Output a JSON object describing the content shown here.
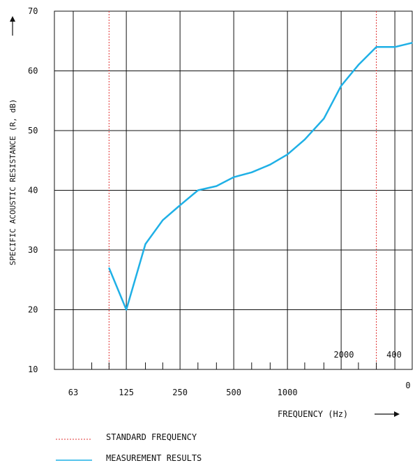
{
  "chart_data": {
    "type": "line",
    "xlabel": "FREQUENCY (Hz)",
    "ylabel": "SPECIFIC ACOUSTIC RESISTANCE (R, dB)",
    "ylim": [
      10,
      70
    ],
    "y_ticks": [
      10,
      20,
      30,
      40,
      50,
      60,
      70
    ],
    "x_scale": "log, third-octave bands",
    "x_tick_labels_bottom": [
      "63",
      "125",
      "250",
      "500",
      "1000"
    ],
    "x_tick_labels_inside": [
      "2000",
      "400"
    ],
    "x_tick_label_corner": "0",
    "grid": true,
    "reference_lines": {
      "name": "STANDARD FREQUENCY",
      "x": [
        100,
        3150
      ],
      "color": "#e03030"
    },
    "series": [
      {
        "name": "MEASUREMENT RESULTS",
        "color": "#1fb0e6",
        "x": [
          100,
          125,
          160,
          200,
          250,
          315,
          400,
          500,
          630,
          800,
          1000,
          1250,
          1600,
          2000,
          2500,
          3150,
          4000,
          5000
        ],
        "y": [
          27,
          20,
          31,
          35,
          37.5,
          40,
          40.7,
          42.2,
          43,
          44.3,
          46,
          48.5,
          52,
          57.5,
          61,
          64,
          64,
          64.7
        ]
      }
    ]
  },
  "legend": {
    "standard_label": "STANDARD FREQUENCY",
    "measurement_label": "MEASUREMENT RESULTS"
  }
}
